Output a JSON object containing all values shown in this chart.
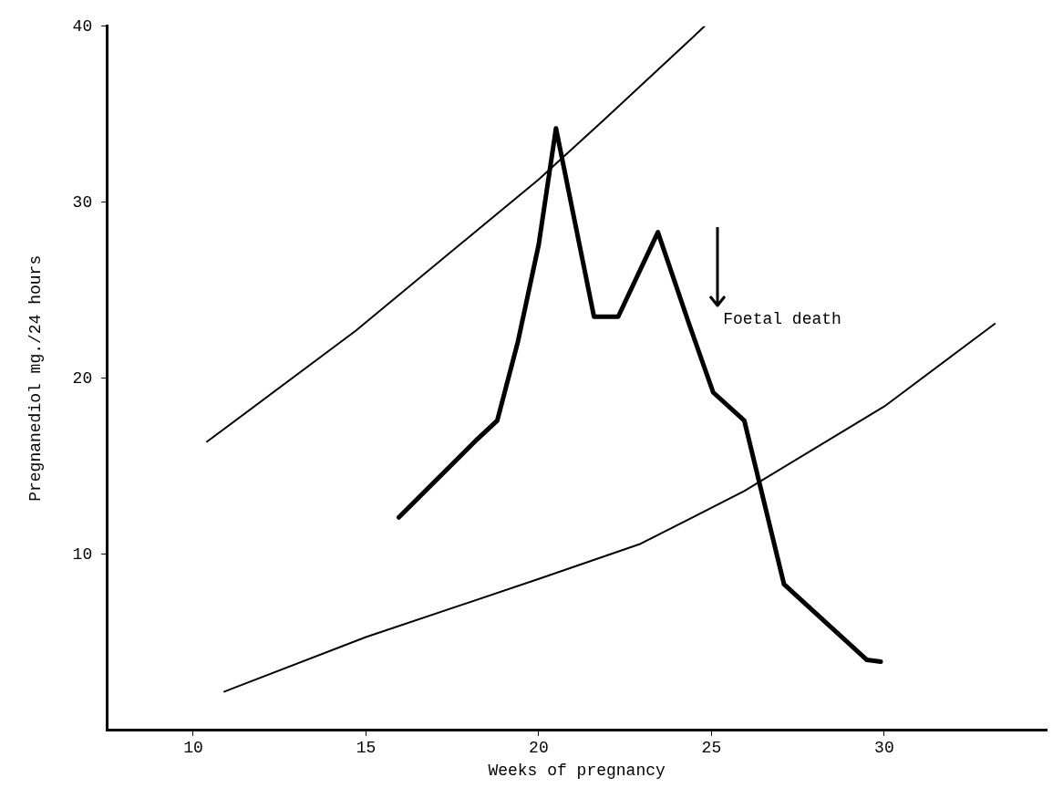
{
  "chart_data": {
    "type": "line",
    "xlabel": "Weeks of pregnancy",
    "ylabel": "Pregnanediol mg./24 hours",
    "xlim": [
      7.5,
      34.7
    ],
    "ylim": [
      0,
      40
    ],
    "xticks": [
      10,
      15,
      20,
      25,
      30
    ],
    "yticks": [
      10,
      20,
      30,
      40
    ],
    "grid": false,
    "legend": false,
    "marker": "none",
    "line_style": "solid",
    "series": [
      {
        "color": "#000000",
        "x": [
          10.4,
          14.7,
          20,
          21.9,
          24.8
        ],
        "values": [
          16.4,
          22.7,
          31.3,
          34.7,
          40
        ]
      },
      {
        "color": "#000000",
        "x": [
          10.9,
          15,
          20,
          22.95,
          25.95,
          30,
          33.2
        ],
        "values": [
          2.2,
          5.3,
          8.6,
          10.6,
          13.6,
          18.4,
          23.1
        ]
      },
      {
        "color": "#000000",
        "x": [
          15.95,
          18.2,
          18.8,
          19.4,
          20,
          20.5,
          21.6,
          22.3,
          23.45,
          24.35,
          25.05,
          25.95,
          27.1,
          29.5,
          29.9
        ],
        "values": [
          12.1,
          16.5,
          17.6,
          22.1,
          27.6,
          34.2,
          23.5,
          23.5,
          28.3,
          23.1,
          19.2,
          17.6,
          8.3,
          4,
          3.9
        ]
      }
    ],
    "annotations": [
      "Foetal death"
    ]
  }
}
